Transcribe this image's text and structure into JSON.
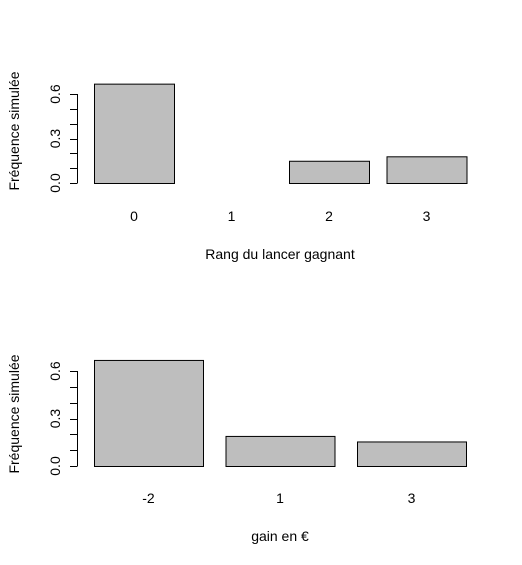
{
  "colors": {
    "bar_fill": "#bebebe",
    "bar_stroke": "#000000",
    "axis": "#000000",
    "background": "#ffffff"
  },
  "chart_data": [
    {
      "type": "bar",
      "title": "",
      "xlabel": "Rang du lancer gagnant",
      "ylabel": "Fréquence simulée",
      "categories": [
        "0",
        "1",
        "2",
        "3"
      ],
      "values": [
        0.67,
        0.0,
        0.15,
        0.18
      ],
      "ylim": [
        0,
        0.7
      ],
      "y_ticks": [
        0.0,
        0.1,
        0.2,
        0.3,
        0.4,
        0.5,
        0.6
      ],
      "y_tick_labels": [
        "0.0",
        "0.3",
        "0.6"
      ],
      "grid": false,
      "legend": "none"
    },
    {
      "type": "bar",
      "title": "",
      "xlabel": "gain en €",
      "ylabel": "Fréquence simulée",
      "categories": [
        "-2",
        "1",
        "3"
      ],
      "values": [
        0.67,
        0.19,
        0.155
      ],
      "ylim": [
        0,
        0.7
      ],
      "y_ticks": [
        0.0,
        0.1,
        0.2,
        0.3,
        0.4,
        0.5,
        0.6
      ],
      "y_tick_labels": [
        "0.0",
        "0.3",
        "0.6"
      ],
      "grid": false,
      "legend": "none"
    }
  ]
}
